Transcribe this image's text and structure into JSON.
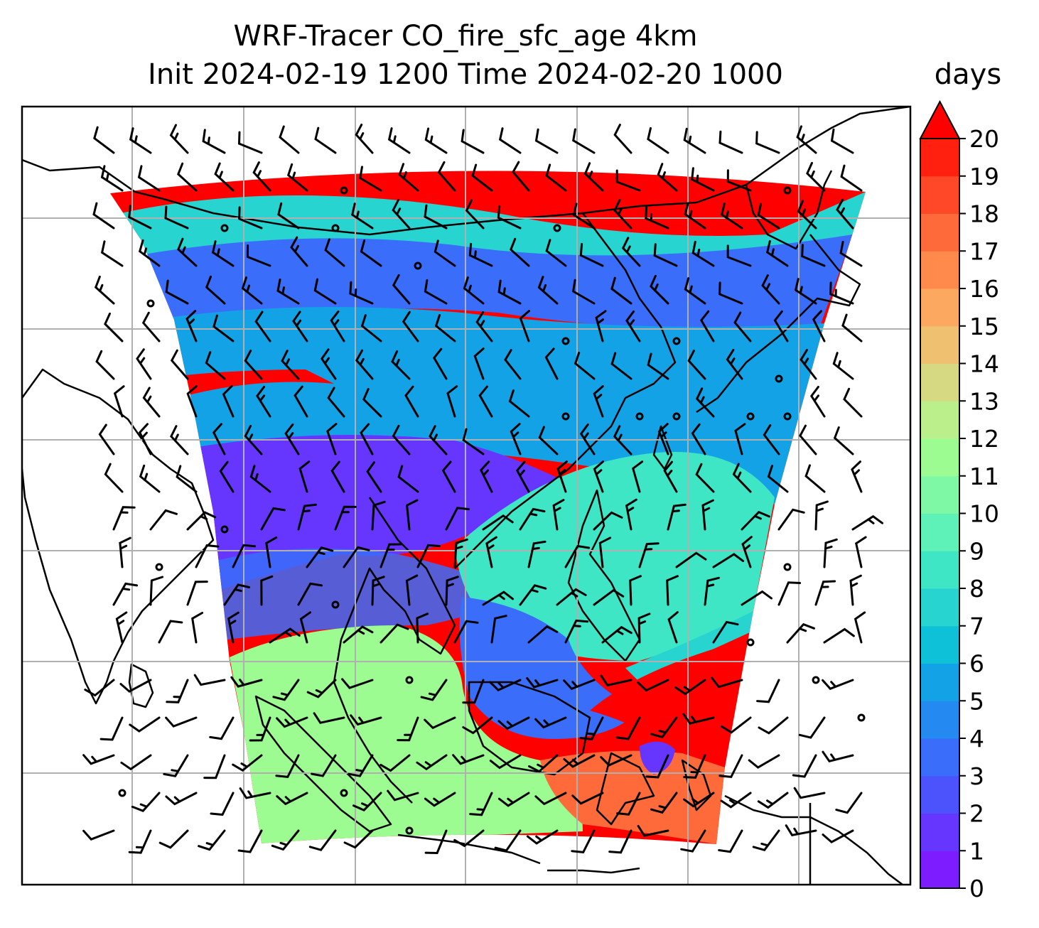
{
  "title_line1": "WRF-Tracer CO_fire_sfc_age 4km",
  "title_line2": "Init 2024-02-19 1200 Time 2024-02-20 1000",
  "colorbar": {
    "unit": "days",
    "ticks": [
      "0",
      "1",
      "2",
      "3",
      "4",
      "5",
      "6",
      "7",
      "8",
      "9",
      "10",
      "11",
      "12",
      "13",
      "14",
      "15",
      "16",
      "17",
      "18",
      "19",
      "20"
    ],
    "colors": [
      "#7c1cff",
      "#6636ff",
      "#4c52fc",
      "#3a6dfa",
      "#2489f1",
      "#14a2e6",
      "#0ec0d8",
      "#28d4cf",
      "#3ee6c6",
      "#5ef2b8",
      "#7ef8a4",
      "#9cfc92",
      "#bbef8c",
      "#d7d882",
      "#efc070",
      "#fca860",
      "#ff8a4c",
      "#ff6a3a",
      "#ff4828",
      "#ff2010"
    ],
    "extend": "max",
    "extend_color": "#ff0000"
  },
  "map": {
    "grid": true,
    "field_name": "CO_fire_sfc_age",
    "regions": [
      {
        "name": "top-red-band",
        "color": "#ff0000"
      },
      {
        "name": "north-cyan",
        "color": "#28d4cf"
      },
      {
        "name": "north-blue",
        "color": "#3a6dfa"
      },
      {
        "name": "mid-cyan",
        "color": "#14a2e6"
      },
      {
        "name": "purple-core",
        "color": "#6636ff"
      },
      {
        "name": "west-red",
        "color": "#ff0000"
      },
      {
        "name": "east-teal",
        "color": "#3ee6c6"
      },
      {
        "name": "south-green",
        "color": "#9cfc92"
      },
      {
        "name": "se-red",
        "color": "#ff0000"
      },
      {
        "name": "se-orange",
        "color": "#ff6a3a"
      }
    ]
  }
}
